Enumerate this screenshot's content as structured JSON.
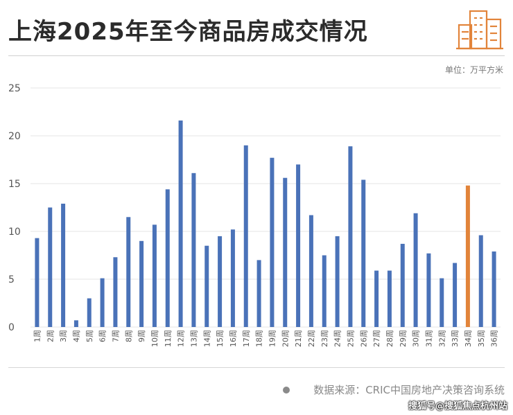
{
  "header": {
    "title": "上海2025年至今商品房成交情况",
    "unit": "单位：万平方米"
  },
  "footer": {
    "source": "数据来源：CRIC中国房地产决策咨询系统",
    "watermark": "搜狐号@搜狐焦点杭州站"
  },
  "colors": {
    "bar": "#4a72b8",
    "highlight": "#e2843a",
    "grid": "#e6e6e6",
    "axis_text": "#555555"
  },
  "icons": {
    "logo": "buildings-icon"
  },
  "chart_data": {
    "type": "bar",
    "title": "上海2025年至今商品房成交情况",
    "xlabel": "",
    "ylabel": "",
    "ylim": [
      0,
      25
    ],
    "yticks": [
      0,
      5,
      10,
      15,
      20,
      25
    ],
    "grid": true,
    "highlight_index": 33,
    "categories": [
      "1周",
      "2周",
      "3周",
      "4周",
      "5周",
      "6周",
      "7周",
      "8周",
      "9周",
      "10周",
      "11周",
      "12周",
      "13周",
      "14周",
      "15周",
      "16周",
      "17周",
      "18周",
      "19周",
      "20周",
      "21周",
      "22周",
      "23周",
      "24周",
      "25周",
      "26周",
      "27周",
      "28周",
      "29周",
      "30周",
      "31周",
      "32周",
      "33周",
      "34周",
      "35周",
      "36周"
    ],
    "values": [
      9.3,
      12.5,
      12.9,
      0.7,
      3.0,
      5.1,
      7.3,
      11.5,
      9.0,
      10.7,
      14.4,
      21.6,
      16.1,
      8.5,
      9.5,
      10.2,
      19.0,
      7.0,
      17.7,
      15.6,
      17.0,
      11.7,
      7.5,
      9.5,
      18.9,
      15.4,
      5.9,
      5.9,
      8.7,
      11.9,
      7.7,
      5.1,
      6.7,
      14.8,
      9.6,
      7.9
    ]
  }
}
